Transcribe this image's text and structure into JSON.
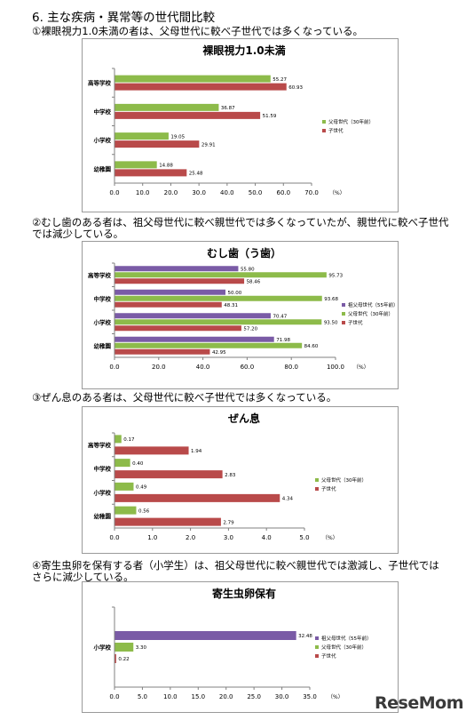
{
  "page": {
    "section_title": "6. 主な疾病・異常等の世代間比較",
    "logo_text": "ReseMom"
  },
  "colors": {
    "grandparent": "#7A5BA6",
    "parent": "#8DBB4A",
    "child": "#B94A4A"
  },
  "sections": [
    {
      "caption": "①裸眼視力1.0未満の者は、父母世代に較べ子世代では多くなっている。",
      "chart": {
        "type": "bar",
        "orientation": "horizontal",
        "title": "裸眼視力1.0未満",
        "categories": [
          "高等学校",
          "中学校",
          "小学校",
          "幼稚園"
        ],
        "series": [
          {
            "name": "父母世代（30年前）",
            "color": "#8DBB4A",
            "values": [
              55.27,
              36.87,
              19.05,
              14.88
            ],
            "labels": [
              "55.27",
              "36.87",
              "19.05",
              "14.88"
            ]
          },
          {
            "name": "子世代",
            "color": "#B94A4A",
            "values": [
              60.93,
              51.59,
              29.91,
              25.48
            ],
            "labels": [
              "60.93",
              "51.59",
              "29.91",
              "25.48"
            ]
          }
        ],
        "xlim": [
          0,
          70
        ],
        "ticks": [
          "0.0",
          "10.0",
          "20.0",
          "30.0",
          "40.0",
          "50.0",
          "60.0",
          "70.0"
        ],
        "unit": "（%）"
      }
    },
    {
      "caption": "②むし歯のある者は、祖父母世代に較べ親世代では多くなっていたが、親世代に較べ子世代では減少している。",
      "chart": {
        "type": "bar",
        "orientation": "horizontal",
        "title": "むし歯（う歯）",
        "categories": [
          "高等学校",
          "中学校",
          "小学校",
          "幼稚園"
        ],
        "series": [
          {
            "name": "祖父母世代（55年前）",
            "color": "#7A5BA6",
            "values": [
              55.8,
              50.0,
              70.47,
              71.98
            ],
            "labels": [
              "55.80",
              "50.00",
              "70.47",
              "71.98"
            ]
          },
          {
            "name": "父母世代（30年前）",
            "color": "#8DBB4A",
            "values": [
              95.73,
              93.68,
              93.5,
              84.6
            ],
            "labels": [
              "95.73",
              "93.68",
              "93.50",
              "84.60"
            ]
          },
          {
            "name": "子世代",
            "color": "#B94A4A",
            "values": [
              58.46,
              48.31,
              57.2,
              42.95
            ],
            "labels": [
              "58.46",
              "48.31",
              "57.20",
              "42.95"
            ]
          }
        ],
        "xlim": [
          0,
          100
        ],
        "ticks": [
          "0.0",
          "20.0",
          "40.0",
          "60.0",
          "80.0",
          "100.0"
        ],
        "unit": "（%）"
      }
    },
    {
      "caption": "③ぜん息のある者は、父母世代に較べ子世代では多くなっている。",
      "chart": {
        "type": "bar",
        "orientation": "horizontal",
        "title": "ぜん息",
        "categories": [
          "高等学校",
          "中学校",
          "小学校",
          "幼稚園"
        ],
        "series": [
          {
            "name": "父母世代（30年前）",
            "color": "#8DBB4A",
            "values": [
              0.17,
              0.4,
              0.49,
              0.56
            ],
            "labels": [
              "0.17",
              "0.40",
              "0.49",
              "0.56"
            ]
          },
          {
            "name": "子世代",
            "color": "#B94A4A",
            "values": [
              1.94,
              2.83,
              4.34,
              2.79
            ],
            "labels": [
              "1.94",
              "2.83",
              "4.34",
              "2.79"
            ]
          }
        ],
        "xlim": [
          0,
          5
        ],
        "ticks": [
          "0.0",
          "1.0",
          "2.0",
          "3.0",
          "4.0",
          "5.0"
        ],
        "unit": "（%）"
      }
    },
    {
      "caption": "④寄生虫卵を保有する者（小学生）は、祖父母世代に較べ親世代では激減し、子世代ではさらに減少している。",
      "chart": {
        "type": "bar",
        "orientation": "horizontal",
        "title": "寄生虫卵保有",
        "categories": [
          "小学校"
        ],
        "series": [
          {
            "name": "祖父母世代（55年前）",
            "color": "#7A5BA6",
            "values": [
              32.48
            ],
            "labels": [
              "32.48"
            ]
          },
          {
            "name": "父母世代（30年前）",
            "color": "#8DBB4A",
            "values": [
              3.3
            ],
            "labels": [
              "3.30"
            ]
          },
          {
            "name": "子世代",
            "color": "#B94A4A",
            "values": [
              0.22
            ],
            "labels": [
              "0.22"
            ]
          }
        ],
        "xlim": [
          0,
          35
        ],
        "ticks": [
          "0.0",
          "5.0",
          "10.0",
          "15.0",
          "20.0",
          "25.0",
          "30.0",
          "35.0"
        ],
        "unit": "（%）"
      }
    }
  ]
}
